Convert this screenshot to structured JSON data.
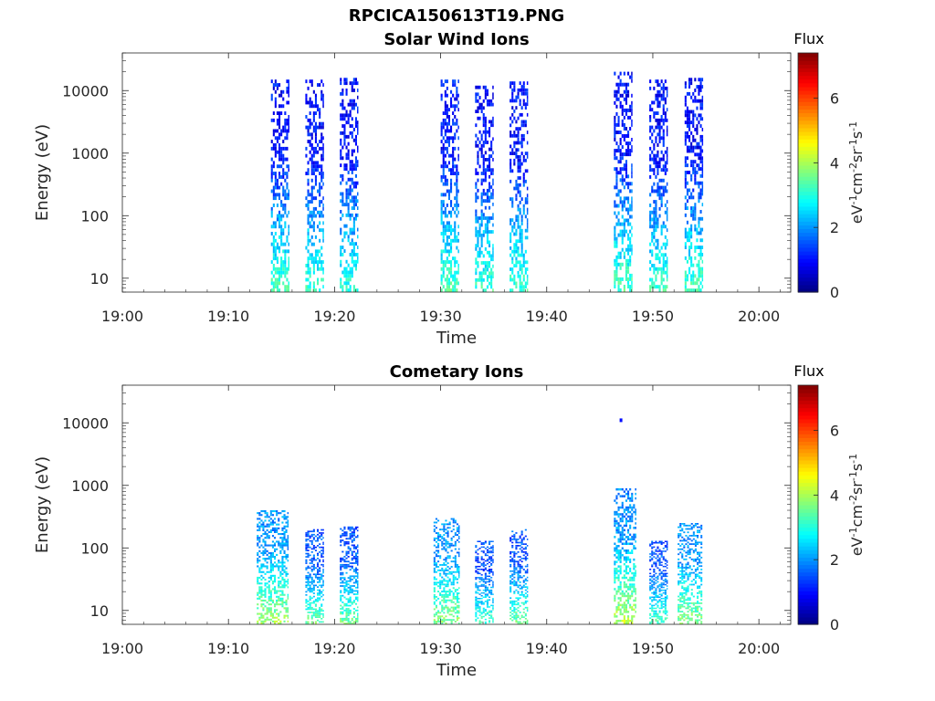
{
  "figure": {
    "title": "RPCICA150613T19.PNG"
  },
  "colormap": {
    "stops": [
      "#00007f",
      "#0000ff",
      "#007fff",
      "#00ffff",
      "#7fff7f",
      "#ffff00",
      "#ff7f00",
      "#ff0000",
      "#7f0000"
    ]
  },
  "chart_data": [
    {
      "type": "heatmap",
      "title": "Solar Wind Ions",
      "xlabel": "Time",
      "ylabel": "Energy (eV)",
      "x_ticks": [
        "19:00",
        "19:10",
        "19:20",
        "19:30",
        "19:40",
        "19:50",
        "20:00"
      ],
      "x_range": [
        "19:00",
        "20:03"
      ],
      "y_scale": "log",
      "y_ticks": [
        10,
        100,
        1000,
        10000
      ],
      "y_range": [
        6,
        40000
      ],
      "colorbar": {
        "title": "Flux",
        "unit": "eV-1cm-2sr-1s-1",
        "ticks": [
          0,
          2,
          4,
          6
        ],
        "range": [
          0,
          7.4
        ]
      },
      "scans": [
        {
          "start": "19:14:00",
          "end": "19:15:40",
          "emin": 6,
          "emax": 15000,
          "low_flux": 3.3,
          "high_flux": 1.0
        },
        {
          "start": "19:17:15",
          "end": "19:18:55",
          "emin": 6,
          "emax": 15000,
          "low_flux": 3.2,
          "high_flux": 1.0
        },
        {
          "start": "19:20:30",
          "end": "19:22:10",
          "emin": 6,
          "emax": 16000,
          "low_flux": 3.1,
          "high_flux": 1.0
        },
        {
          "start": "19:30:00",
          "end": "19:31:45",
          "emin": 6,
          "emax": 15000,
          "low_flux": 3.3,
          "high_flux": 1.1
        },
        {
          "start": "19:33:15",
          "end": "19:35:00",
          "emin": 6,
          "emax": 12000,
          "low_flux": 3.2,
          "high_flux": 1.0
        },
        {
          "start": "19:36:30",
          "end": "19:38:15",
          "emin": 6,
          "emax": 14000,
          "low_flux": 3.2,
          "high_flux": 1.0
        },
        {
          "start": "19:46:20",
          "end": "19:48:00",
          "emin": 6,
          "emax": 20000,
          "low_flux": 3.3,
          "high_flux": 1.0
        },
        {
          "start": "19:49:40",
          "end": "19:51:20",
          "emin": 6,
          "emax": 15000,
          "low_flux": 3.2,
          "high_flux": 1.0
        },
        {
          "start": "19:53:00",
          "end": "19:54:40",
          "emin": 6,
          "emax": 16000,
          "low_flux": 3.3,
          "high_flux": 1.0
        }
      ]
    },
    {
      "type": "heatmap",
      "title": "Cometary Ions",
      "xlabel": "Time",
      "ylabel": "Energy (eV)",
      "x_ticks": [
        "19:00",
        "19:10",
        "19:20",
        "19:30",
        "19:40",
        "19:50",
        "20:00"
      ],
      "x_range": [
        "19:00",
        "20:03"
      ],
      "y_scale": "log",
      "y_ticks": [
        10,
        100,
        1000,
        10000
      ],
      "y_range": [
        6,
        40000
      ],
      "colorbar": {
        "title": "Flux",
        "unit": "eV-1cm-2sr-1s-1",
        "ticks": [
          0,
          2,
          4,
          6
        ],
        "range": [
          0,
          7.4
        ]
      },
      "scans": [
        {
          "start": "19:12:40",
          "end": "19:15:40",
          "emin": 6,
          "emax": 400,
          "low_flux": 4.0,
          "high_flux": 2.0
        },
        {
          "start": "19:17:15",
          "end": "19:18:55",
          "emin": 6,
          "emax": 200,
          "low_flux": 3.6,
          "high_flux": 1.5
        },
        {
          "start": "19:20:30",
          "end": "19:22:10",
          "emin": 6,
          "emax": 220,
          "low_flux": 3.6,
          "high_flux": 1.5
        },
        {
          "start": "19:29:20",
          "end": "19:31:45",
          "emin": 6,
          "emax": 300,
          "low_flux": 3.8,
          "high_flux": 2.0
        },
        {
          "start": "19:33:15",
          "end": "19:35:00",
          "emin": 6,
          "emax": 130,
          "low_flux": 3.3,
          "high_flux": 1.5
        },
        {
          "start": "19:36:30",
          "end": "19:38:15",
          "emin": 6,
          "emax": 200,
          "low_flux": 3.6,
          "high_flux": 1.5
        },
        {
          "start": "19:46:20",
          "end": "19:48:20",
          "emin": 6,
          "emax": 900,
          "low_flux": 4.2,
          "high_flux": 2.0
        },
        {
          "start": "19:49:40",
          "end": "19:51:20",
          "emin": 6,
          "emax": 130,
          "low_flux": 3.3,
          "high_flux": 1.5
        },
        {
          "start": "19:52:20",
          "end": "19:54:40",
          "emin": 6,
          "emax": 250,
          "low_flux": 3.8,
          "high_flux": 2.0
        }
      ],
      "points": [
        {
          "time": "19:47:00",
          "energy": 11000,
          "flux": 1.0
        }
      ]
    }
  ]
}
